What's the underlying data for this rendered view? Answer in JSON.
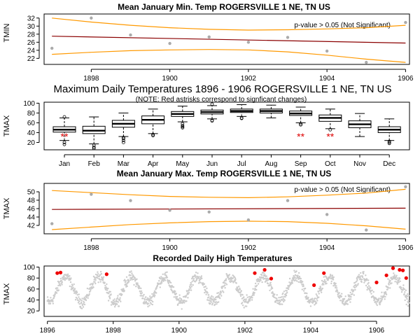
{
  "chart_data": [
    {
      "type": "scatter",
      "title": "Mean January Min. Temp ROGERSVILLE 1 NE, TN US",
      "ylabel": "TMIN",
      "annotation": "p-value > 0.05 (Not Significant)",
      "xlim": [
        1896.8,
        1906.1
      ],
      "ylim": [
        20.5,
        33
      ],
      "xticks": [
        1898,
        1900,
        1902,
        1904,
        1906
      ],
      "yticks": [
        22,
        24,
        26,
        28,
        30,
        32
      ],
      "points": [
        [
          1897,
          24.5
        ],
        [
          1898,
          32
        ],
        [
          1899,
          27.8
        ],
        [
          1900,
          25.7
        ],
        [
          1901,
          27.3
        ],
        [
          1902,
          26
        ],
        [
          1903,
          27.2
        ],
        [
          1904,
          23.8
        ],
        [
          1905,
          21
        ],
        [
          1906,
          30.9
        ]
      ],
      "trend": [
        [
          1897,
          27.5
        ],
        [
          1906,
          25.8
        ]
      ],
      "upper_band": [
        [
          1897,
          32
        ],
        [
          1898,
          31
        ],
        [
          1899,
          30.2
        ],
        [
          1900,
          29.6
        ],
        [
          1901,
          29.2
        ],
        [
          1902,
          29
        ],
        [
          1903,
          29.1
        ],
        [
          1904,
          29.3
        ],
        [
          1905,
          29.6
        ],
        [
          1906,
          30.2
        ]
      ],
      "lower_band": [
        [
          1897,
          23
        ],
        [
          1898,
          23.5
        ],
        [
          1899,
          23.9
        ],
        [
          1900,
          24.1
        ],
        [
          1901,
          24.2
        ],
        [
          1902,
          24.1
        ],
        [
          1903,
          23.6
        ],
        [
          1904,
          22.8
        ],
        [
          1905,
          21.8
        ],
        [
          1906,
          21
        ]
      ],
      "colors": {
        "points": "#aaaaaa",
        "trend": "#8b0000",
        "band": "#ff9900"
      }
    },
    {
      "type": "boxplot",
      "title": "Maximum Daily Temperatures 1896 - 1906 ROGERSVILLE 1 NE, TN US",
      "subtitle": "(NOTE: Red astrisks correspond to signficant changes)",
      "ylabel": "TMAX",
      "categories": [
        "Jan",
        "Feb",
        "Mar",
        "Apr",
        "May",
        "Jun",
        "Jul",
        "Aug",
        "Sep",
        "Oct",
        "Nov",
        "Dec"
      ],
      "ylim": [
        5,
        102
      ],
      "yticks": [
        20,
        40,
        60,
        80,
        100
      ],
      "boxes": [
        {
          "low": 24,
          "q1": 41,
          "median": 46,
          "q3": 52,
          "high": 70,
          "outliers": [
            72,
            20,
            16
          ]
        },
        {
          "low": 17,
          "q1": 38,
          "median": 44,
          "q3": 53,
          "high": 72,
          "outliers": [
            14,
            10,
            8
          ]
        },
        {
          "low": 32,
          "q1": 51,
          "median": 58,
          "q3": 65,
          "high": 80,
          "outliers": [
            30,
            28,
            24,
            20
          ]
        },
        {
          "low": 38,
          "q1": 58,
          "median": 66,
          "q3": 74,
          "high": 88,
          "outliers": [
            36,
            34
          ]
        },
        {
          "low": 62,
          "q1": 73,
          "median": 78,
          "q3": 83,
          "high": 94,
          "outliers": [
            58,
            54,
            52,
            50
          ]
        },
        {
          "low": 68,
          "q1": 78,
          "median": 82,
          "q3": 86,
          "high": 95,
          "outliers": [
            65,
            64,
            98
          ]
        },
        {
          "low": 73,
          "q1": 81,
          "median": 84,
          "q3": 88,
          "high": 97,
          "outliers": [
            70,
            69
          ]
        },
        {
          "low": 70,
          "q1": 80,
          "median": 84,
          "q3": 88,
          "high": 96,
          "outliers": []
        },
        {
          "low": 60,
          "q1": 75,
          "median": 79,
          "q3": 84,
          "high": 92,
          "outliers": [
            58,
            56
          ]
        },
        {
          "low": 48,
          "q1": 63,
          "median": 70,
          "q3": 76,
          "high": 88,
          "outliers": [
            46
          ]
        },
        {
          "low": 32,
          "q1": 50,
          "median": 57,
          "q3": 64,
          "high": 79,
          "outliers": []
        },
        {
          "low": 24,
          "q1": 40,
          "median": 46,
          "q3": 52,
          "high": 68,
          "outliers": [
            22,
            20,
            18
          ]
        }
      ],
      "significant": [
        {
          "category": "Jan",
          "y": 32,
          "label": "**"
        },
        {
          "category": "Sep",
          "y": 32,
          "label": "**"
        },
        {
          "category": "Oct",
          "y": 32,
          "label": "**"
        }
      ],
      "colors": {
        "marker": "#dd0000"
      }
    },
    {
      "type": "scatter",
      "title": "Mean January Max. Temp ROGERSVILLE 1 NE, TN US",
      "ylabel": "TMAX",
      "annotation": "p-value > 0.05 (Not Significant)",
      "xlim": [
        1896.8,
        1906.1
      ],
      "ylim": [
        40,
        52
      ],
      "xticks": [
        1898,
        1900,
        1902,
        1904,
        1906
      ],
      "yticks": [
        42,
        44,
        46,
        48,
        50
      ],
      "points": [
        [
          1897,
          42.4
        ],
        [
          1898,
          49.4
        ],
        [
          1899,
          47.9
        ],
        [
          1900,
          45.6
        ],
        [
          1901,
          45.2
        ],
        [
          1902,
          43.3
        ],
        [
          1903,
          47.9
        ],
        [
          1904,
          44.6
        ],
        [
          1905,
          40.9
        ],
        [
          1906,
          51.2
        ]
      ],
      "trend": [
        [
          1897,
          45.8
        ],
        [
          1906,
          46.1
        ]
      ],
      "upper_band": [
        [
          1897,
          50.3
        ],
        [
          1898,
          49.8
        ],
        [
          1899,
          49.3
        ],
        [
          1900,
          48.9
        ],
        [
          1901,
          48.7
        ],
        [
          1902,
          48.6
        ],
        [
          1903,
          48.8
        ],
        [
          1904,
          49.2
        ],
        [
          1905,
          49.7
        ],
        [
          1906,
          50.6
        ]
      ],
      "lower_band": [
        [
          1897,
          41
        ],
        [
          1898,
          41.6
        ],
        [
          1899,
          42.2
        ],
        [
          1900,
          42.6
        ],
        [
          1901,
          42.9
        ],
        [
          1902,
          43
        ],
        [
          1903,
          42.9
        ],
        [
          1904,
          42.5
        ],
        [
          1905,
          41.9
        ],
        [
          1906,
          41.1
        ]
      ],
      "colors": {
        "points": "#aaaaaa",
        "trend": "#8b0000",
        "band": "#ff9900"
      }
    },
    {
      "type": "scatter",
      "title": "Recorded Daily High Temperatures",
      "ylabel": "TMAX",
      "xlim": [
        1895.9,
        1907.0
      ],
      "ylim": [
        10,
        102
      ],
      "xticks": [
        1896,
        1898,
        1900,
        1902,
        1904,
        1906
      ],
      "yticks": [
        20,
        40,
        60,
        80,
        100
      ],
      "seasonal": {
        "start_year": 1896.0,
        "years": 11,
        "mean": 59,
        "amplitude": 23,
        "trough_offset": 0.05,
        "spread": 10
      },
      "record_highs": [
        [
          1896.3,
          89
        ],
        [
          1896.4,
          90
        ],
        [
          1897.8,
          87
        ],
        [
          1902.3,
          89
        ],
        [
          1902.6,
          95
        ],
        [
          1902.8,
          79
        ],
        [
          1904.1,
          67
        ],
        [
          1904.4,
          89
        ],
        [
          1906.0,
          72
        ],
        [
          1906.3,
          85
        ],
        [
          1906.5,
          98
        ],
        [
          1906.7,
          95
        ],
        [
          1906.8,
          94
        ],
        [
          1906.9,
          80
        ]
      ],
      "colors": {
        "points": "#cccccc",
        "record": "#ee0000"
      }
    }
  ]
}
